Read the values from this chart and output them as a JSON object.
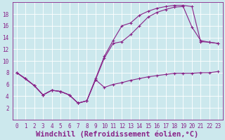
{
  "background_color": "#cce8ed",
  "grid_color": "#ffffff",
  "line_color": "#882288",
  "xlabel": "Windchill (Refroidissement éolien,°C)",
  "xlim": [
    -0.5,
    23.5
  ],
  "ylim": [
    0,
    20
  ],
  "xticks": [
    0,
    1,
    2,
    3,
    4,
    5,
    6,
    7,
    8,
    9,
    10,
    11,
    12,
    13,
    14,
    15,
    16,
    17,
    18,
    19,
    20,
    21,
    22,
    23
  ],
  "yticks": [
    2,
    4,
    6,
    8,
    10,
    12,
    14,
    16,
    18
  ],
  "line1_x": [
    0,
    1,
    2,
    3,
    4,
    5,
    6,
    7,
    8,
    9,
    10,
    11,
    12,
    13,
    14,
    15,
    16,
    17,
    18,
    19,
    20,
    21,
    22,
    23
  ],
  "line1_y": [
    8.0,
    7.0,
    5.8,
    4.2,
    5.0,
    4.8,
    4.2,
    2.8,
    3.2,
    6.8,
    5.5,
    6.0,
    6.3,
    6.7,
    7.0,
    7.3,
    7.5,
    7.7,
    7.9,
    7.9,
    7.9,
    8.0,
    8.0,
    8.2
  ],
  "line2_x": [
    0,
    1,
    2,
    3,
    4,
    5,
    6,
    7,
    8,
    9,
    10,
    11,
    12,
    13,
    14,
    15,
    16,
    17,
    18,
    19,
    20,
    21,
    22,
    23
  ],
  "line2_y": [
    8.0,
    7.0,
    5.8,
    4.2,
    5.0,
    4.8,
    4.2,
    2.8,
    3.2,
    6.8,
    10.5,
    13.0,
    13.3,
    14.5,
    16.0,
    17.5,
    18.3,
    18.8,
    19.2,
    19.3,
    15.8,
    13.5,
    13.2,
    13.0
  ],
  "line3_x": [
    0,
    2,
    3,
    4,
    5,
    6,
    7,
    8,
    9,
    10,
    11,
    12,
    13,
    14,
    15,
    16,
    17,
    18,
    19,
    20,
    21,
    22,
    23
  ],
  "line3_y": [
    8.0,
    5.8,
    4.2,
    5.0,
    4.8,
    4.2,
    2.8,
    3.2,
    7.0,
    10.8,
    13.5,
    16.0,
    16.5,
    17.8,
    18.5,
    19.0,
    19.3,
    19.5,
    19.5,
    19.3,
    13.3,
    13.2,
    13.0
  ],
  "tick_fontsize": 5.5,
  "xlabel_fontsize": 7.5
}
